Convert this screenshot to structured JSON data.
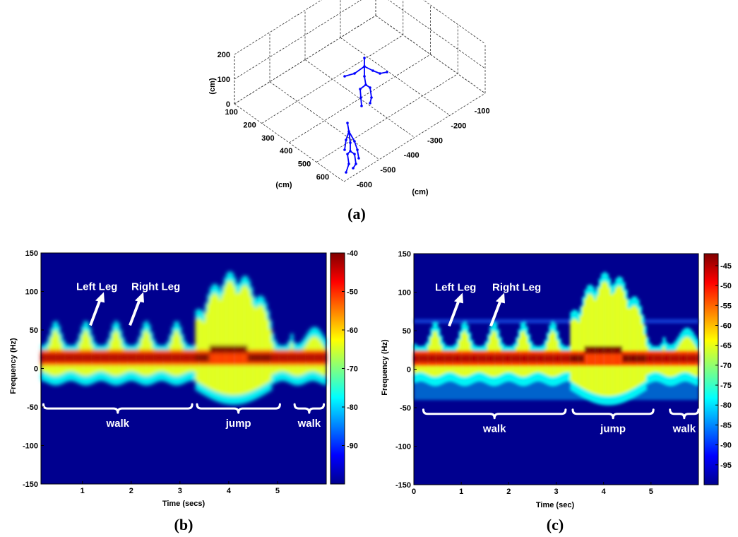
{
  "chart_data": [
    {
      "type": "scatter",
      "panel": "(a)",
      "zlabel": "(cm)",
      "xlabel": "(cm)",
      "ylabel": "(cm)",
      "zticks": [
        "200",
        "100",
        "0"
      ],
      "depth_ticks": [
        "100",
        "200",
        "300",
        "400",
        "500",
        "600"
      ],
      "width_ticks": [
        "-600",
        "-500",
        "-400",
        "-300",
        "-200",
        "-100"
      ],
      "figures": 2,
      "color": "#0000ff"
    },
    {
      "type": "heatmap",
      "panel": "(b)",
      "xlabel": "Time (secs)",
      "ylabel": "Frequency (Hz)",
      "xticks": [
        "1",
        "2",
        "3",
        "4",
        "5"
      ],
      "yticks": [
        "150",
        "100",
        "50",
        "0",
        "-50",
        "-100",
        "-150"
      ],
      "xlim": [
        0.15,
        6
      ],
      "ylim": [
        -150,
        150
      ],
      "colorbar_ticks": [
        "-40",
        "-50",
        "-60",
        "-70",
        "-80",
        "-90"
      ],
      "colorbar_range": [
        -100,
        -40
      ],
      "annotations": [
        "Left Leg",
        "Right Leg"
      ],
      "segments": [
        {
          "label": "walk",
          "start": 0.2,
          "end": 3.25
        },
        {
          "label": "jump",
          "start": 3.35,
          "end": 5.05
        },
        {
          "label": "walk",
          "start": 5.35,
          "end": 5.95
        }
      ]
    },
    {
      "type": "heatmap",
      "panel": "(c)",
      "xlabel": "Time (sec)",
      "ylabel": "Frequency (Hz)",
      "xticks": [
        "0",
        "1",
        "2",
        "3",
        "4",
        "5"
      ],
      "yticks": [
        "150",
        "100",
        "50",
        "0",
        "-50",
        "-100",
        "-150"
      ],
      "xlim": [
        0,
        6
      ],
      "ylim": [
        -150,
        150
      ],
      "colorbar_ticks": [
        "-45",
        "-50",
        "-55",
        "-60",
        "-65",
        "-70",
        "-75",
        "-80",
        "-85",
        "-90",
        "-95"
      ],
      "colorbar_range": [
        -100,
        -42
      ],
      "annotations": [
        "Left Leg",
        "Right Leg"
      ],
      "segments": [
        {
          "label": "walk",
          "start": 0.2,
          "end": 3.2
        },
        {
          "label": "jump",
          "start": 3.35,
          "end": 5.05
        },
        {
          "label": "walk",
          "start": 5.4,
          "end": 6.0
        }
      ]
    }
  ]
}
